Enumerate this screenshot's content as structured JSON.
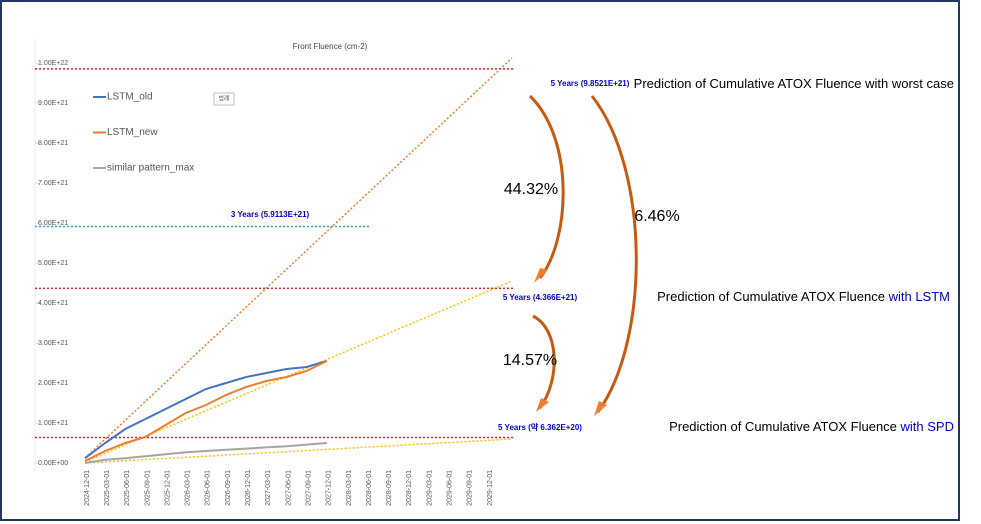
{
  "chart_data": {
    "type": "line",
    "title": "Front Fluence (cm-2)",
    "legend_box": "범례",
    "categories": [
      "2024-12-01",
      "2025-03-01",
      "2025-06-01",
      "2025-09-01",
      "2025-12-01",
      "2026-03-01",
      "2026-06-01",
      "2026-09-01",
      "2026-12-01",
      "2027-03-01",
      "2027-06-01",
      "2027-09-01",
      "2027-12-01",
      "2028-03-01",
      "2028-06-01",
      "2028-09-01",
      "2028-12-01",
      "2029-03-01",
      "2029-06-01",
      "2029-09-01",
      "2029-12-01"
    ],
    "series": [
      {
        "name": "LSTM_old",
        "color": "#4472c4",
        "values": [
          1.2e+20,
          5e+20,
          8.5e+20,
          1.1e+21,
          1.35e+21,
          1.6e+21,
          1.85e+21,
          2e+21,
          2.15e+21,
          2.25e+21,
          2.35e+21,
          2.4e+21,
          2.55e+21,
          null,
          null,
          null,
          null,
          null,
          null,
          null,
          null
        ]
      },
      {
        "name": "LSTM_new",
        "color": "#ed7d31",
        "values": [
          5e+19,
          3e+20,
          5e+20,
          6.5e+20,
          9.5e+20,
          1.25e+21,
          1.45e+21,
          1.7e+21,
          1.9e+21,
          2.05e+21,
          2.15e+21,
          2.3e+21,
          2.55e+21,
          null,
          null,
          null,
          null,
          null,
          null,
          null,
          null
        ]
      },
      {
        "name": "similar pattern_max",
        "color": "#a5a5a5",
        "values": [
          0,
          8e+19,
          1.2e+20,
          1.7e+20,
          2.2e+20,
          2.7e+20,
          3e+20,
          3.3e+20,
          3.6e+20,
          3.9e+20,
          4.2e+20,
          4.6e+20,
          5e+20,
          null,
          null,
          null,
          null,
          null,
          null,
          null,
          null
        ]
      }
    ],
    "ylim": [
      0,
      1e+22
    ],
    "yticks": [
      {
        "value": 0,
        "label": "0.00E+00"
      },
      {
        "value": 1e+21,
        "label": "1.00E+21"
      },
      {
        "value": 2e+21,
        "label": "2.00E+21"
      },
      {
        "value": 3e+21,
        "label": "3.00E+21"
      },
      {
        "value": 4e+21,
        "label": "4.00E+21"
      },
      {
        "value": 5e+21,
        "label": "5.00E+21"
      },
      {
        "value": 6e+21,
        "label": "6.00E+21"
      },
      {
        "value": 7e+21,
        "label": "7.00E+21"
      },
      {
        "value": 8e+21,
        "label": "8.00E+21"
      },
      {
        "value": 9e+21,
        "label": "9.00E+21"
      },
      {
        "value": 1e+22,
        "label": "1.00E+22"
      }
    ],
    "reference_lines": [
      {
        "value": 9.8521e+21,
        "color": "#e0202a",
        "label": "5 Years (9.8521E+21)"
      },
      {
        "value": 5.9113e+21,
        "color": "#2aa8d8",
        "label": "3 Years (5.9113E+21)"
      },
      {
        "value": 4.366e+21,
        "color": "#e0202a",
        "label": "5 Years (4.366E+21)"
      },
      {
        "value": 6.362e+20,
        "color": "#e0202a",
        "label": "5 Years (약 6.362E+20)"
      }
    ],
    "notes": [
      {
        "text": "Prediction of Cumulative ATOX Fluence with worst case",
        "highlight": ""
      },
      {
        "text": "Prediction of Cumulative ATOX Fluence ",
        "highlight": "with LSTM"
      },
      {
        "text": "Prediction of Cumulative ATOX Fluence ",
        "highlight": "with SPD"
      }
    ],
    "percentages": [
      "44.32%",
      "14.57%",
      "6.46%"
    ]
  }
}
